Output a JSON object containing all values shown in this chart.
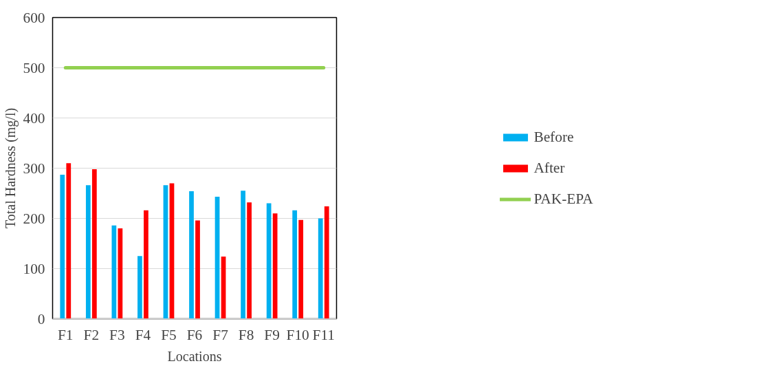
{
  "chart_data": {
    "type": "bar",
    "xlabel": "Locations",
    "ylabel": "Total Hardness (mg/l)",
    "categories": [
      "F1",
      "F2",
      "F3",
      "F4",
      "F5",
      "F6",
      "F7",
      "F8",
      "F9",
      "F10",
      "F11"
    ],
    "series": [
      {
        "name": "Before",
        "color": "#00b0f0",
        "values": [
          287,
          266,
          186,
          125,
          266,
          254,
          243,
          255,
          230,
          216,
          200
        ]
      },
      {
        "name": "After",
        "color": "#ff0000",
        "values": [
          310,
          298,
          180,
          216,
          270,
          196,
          124,
          232,
          210,
          197,
          224
        ]
      },
      {
        "name": "PAK-EPA",
        "type": "line",
        "color": "#92d050",
        "values": [
          500,
          500,
          500,
          500,
          500,
          500,
          500,
          500,
          500,
          500,
          500
        ]
      }
    ],
    "ylim": [
      0,
      600
    ],
    "yticks": [
      0,
      100,
      200,
      300,
      400,
      500,
      600
    ],
    "grid": "y",
    "legend": "right"
  }
}
